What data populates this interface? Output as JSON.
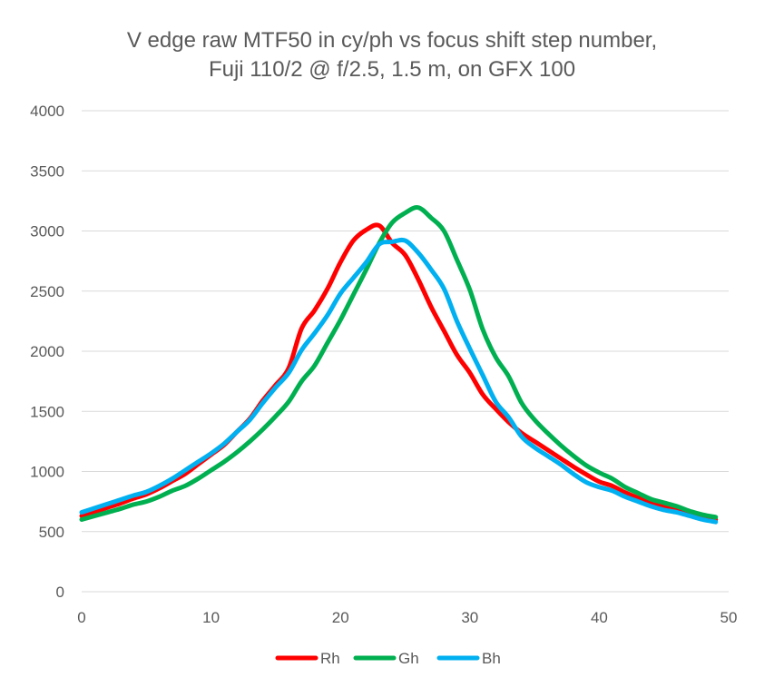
{
  "chart_data": {
    "type": "line",
    "title": "V edge raw MTF50 in cy/ph vs focus shift step number,",
    "subtitle": "Fuji 110/2 @ f/2.5, 1.5 m, on GFX 100",
    "xlabel": "",
    "ylabel": "",
    "xlim": [
      0,
      50
    ],
    "ylim": [
      0,
      4000
    ],
    "x_ticks": [
      0,
      10,
      20,
      30,
      40,
      50
    ],
    "y_ticks": [
      0,
      500,
      1000,
      1500,
      2000,
      2500,
      3000,
      3500,
      4000
    ],
    "grid": true,
    "legend_position": "bottom",
    "x": [
      0,
      1,
      2,
      3,
      4,
      5,
      6,
      7,
      8,
      9,
      10,
      11,
      12,
      13,
      14,
      15,
      16,
      17,
      18,
      19,
      20,
      21,
      22,
      23,
      24,
      25,
      26,
      27,
      28,
      29,
      30,
      31,
      32,
      33,
      34,
      35,
      36,
      37,
      38,
      39,
      40,
      41,
      42,
      43,
      44,
      45,
      46,
      47,
      48,
      49
    ],
    "series": [
      {
        "name": "Rh",
        "color": "#ff0000",
        "values": [
          630,
          665,
          700,
          735,
          775,
          810,
          860,
          920,
          980,
          1060,
          1140,
          1220,
          1330,
          1440,
          1590,
          1720,
          1860,
          2190,
          2340,
          2520,
          2740,
          2920,
          3010,
          3045,
          2900,
          2800,
          2600,
          2370,
          2170,
          1970,
          1820,
          1640,
          1520,
          1410,
          1320,
          1250,
          1180,
          1110,
          1040,
          975,
          915,
          880,
          825,
          780,
          745,
          705,
          680,
          650,
          620,
          600
        ]
      },
      {
        "name": "Gh",
        "color": "#00b050",
        "values": [
          600,
          630,
          660,
          690,
          725,
          750,
          790,
          840,
          880,
          940,
          1010,
          1080,
          1160,
          1250,
          1350,
          1460,
          1580,
          1750,
          1880,
          2070,
          2260,
          2470,
          2680,
          2900,
          3070,
          3150,
          3195,
          3110,
          3000,
          2760,
          2510,
          2180,
          1950,
          1790,
          1570,
          1430,
          1320,
          1220,
          1130,
          1050,
          990,
          940,
          870,
          820,
          770,
          740,
          710,
          670,
          640,
          620
        ]
      },
      {
        "name": "Bh",
        "color": "#00b0f0",
        "values": [
          660,
          695,
          730,
          765,
          800,
          830,
          880,
          940,
          1010,
          1080,
          1150,
          1230,
          1330,
          1430,
          1570,
          1700,
          1820,
          2010,
          2150,
          2300,
          2480,
          2610,
          2740,
          2890,
          2910,
          2920,
          2820,
          2680,
          2520,
          2250,
          2020,
          1800,
          1580,
          1450,
          1290,
          1200,
          1130,
          1060,
          980,
          910,
          870,
          840,
          790,
          750,
          710,
          680,
          660,
          630,
          600,
          580
        ]
      }
    ]
  }
}
